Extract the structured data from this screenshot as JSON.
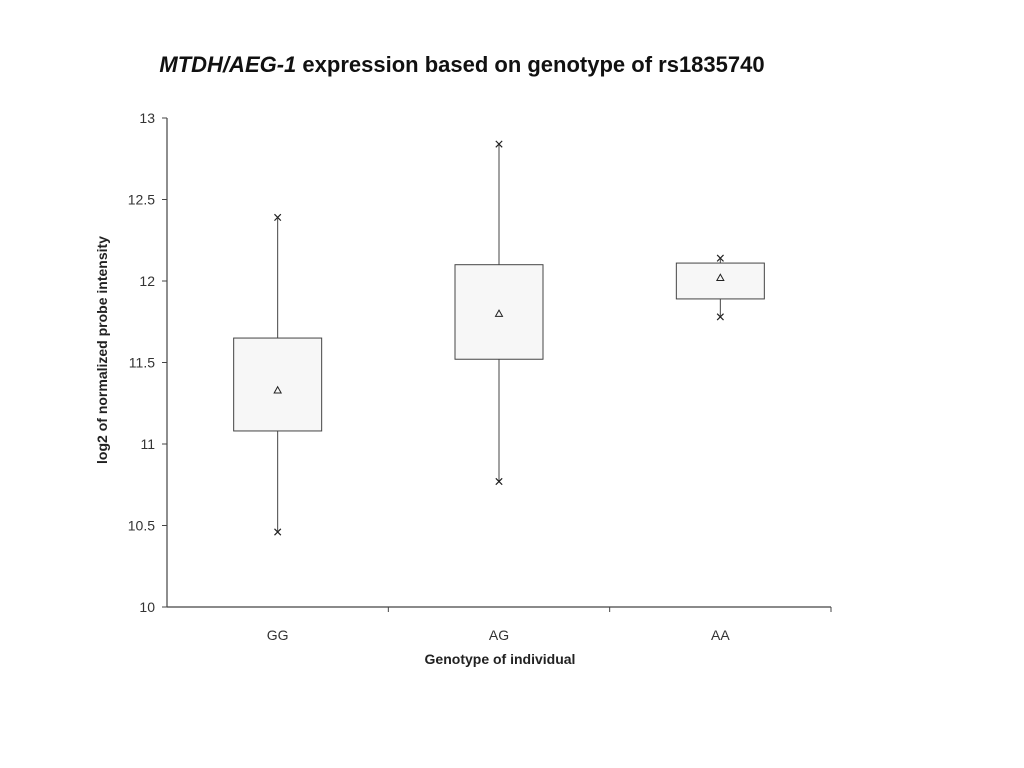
{
  "title": {
    "gene": "MTDH/AEG-1",
    "rest": " expression based on genotype of rs1835740"
  },
  "chart_data": {
    "type": "box",
    "title": "MTDH/AEG-1 expression based on genotype of rs1835740",
    "xlabel": "Genotype of individual",
    "ylabel": "log2 of normalized probe intensity",
    "ylim": [
      10,
      13
    ],
    "yticks": [
      10,
      10.5,
      11,
      11.5,
      12,
      12.5,
      13
    ],
    "ytick_labels": [
      "10",
      "10.5",
      "11",
      "11.5",
      "12",
      "12.5",
      "13"
    ],
    "grid": false,
    "categories": [
      "GG",
      "AG",
      "AA"
    ],
    "boxes": [
      {
        "category": "GG",
        "min": 10.46,
        "q1": 11.08,
        "q3": 11.65,
        "max": 12.39,
        "mean": 11.33
      },
      {
        "category": "AG",
        "min": 10.77,
        "q1": 11.52,
        "q3": 12.1,
        "max": 12.84,
        "mean": 11.8
      },
      {
        "category": "AA",
        "min": 11.78,
        "q1": 11.89,
        "q3": 12.11,
        "max": 12.14,
        "mean": 12.02
      }
    ],
    "colors": {
      "box_fill": "#f7f7f7",
      "stroke": "#444444"
    }
  }
}
